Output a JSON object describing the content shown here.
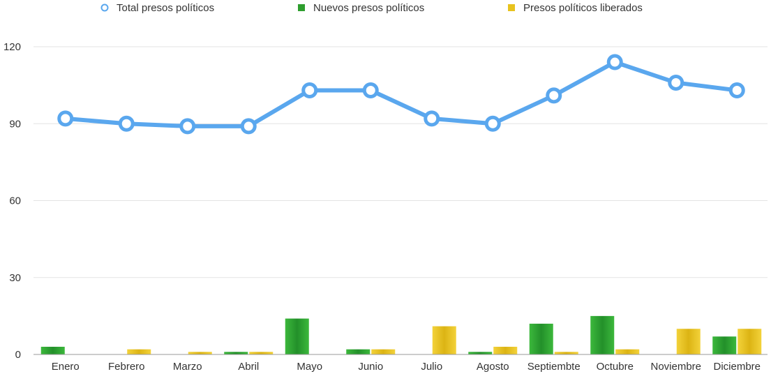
{
  "chart_data": {
    "type": "bar",
    "categories": [
      "Enero",
      "Febrero",
      "Marzo",
      "Abril",
      "Mayo",
      "Junio",
      "Julio",
      "Agosto",
      "Septiembte",
      "Octubre",
      "Noviembre",
      "Diciembre"
    ],
    "series": [
      {
        "name": "Total presos políticos",
        "type": "line",
        "color": "#5aa7ee",
        "values": [
          92,
          90,
          89,
          89,
          103,
          103,
          92,
          90,
          101,
          114,
          106,
          103
        ]
      },
      {
        "name": "Nuevos presos políticos",
        "type": "bar",
        "color": "#2e9e2e",
        "values": [
          3,
          0,
          0,
          1,
          14,
          2,
          0,
          1,
          12,
          15,
          0,
          7
        ]
      },
      {
        "name": "Presos políticos liberados",
        "type": "bar",
        "color": "#e8c31e",
        "values": [
          0,
          2,
          1,
          1,
          0,
          2,
          11,
          3,
          1,
          2,
          10,
          10
        ]
      }
    ],
    "yticks": [
      0,
      30,
      60,
      90,
      120
    ],
    "ylim": [
      0,
      120
    ],
    "grid": true,
    "legend": "top"
  }
}
